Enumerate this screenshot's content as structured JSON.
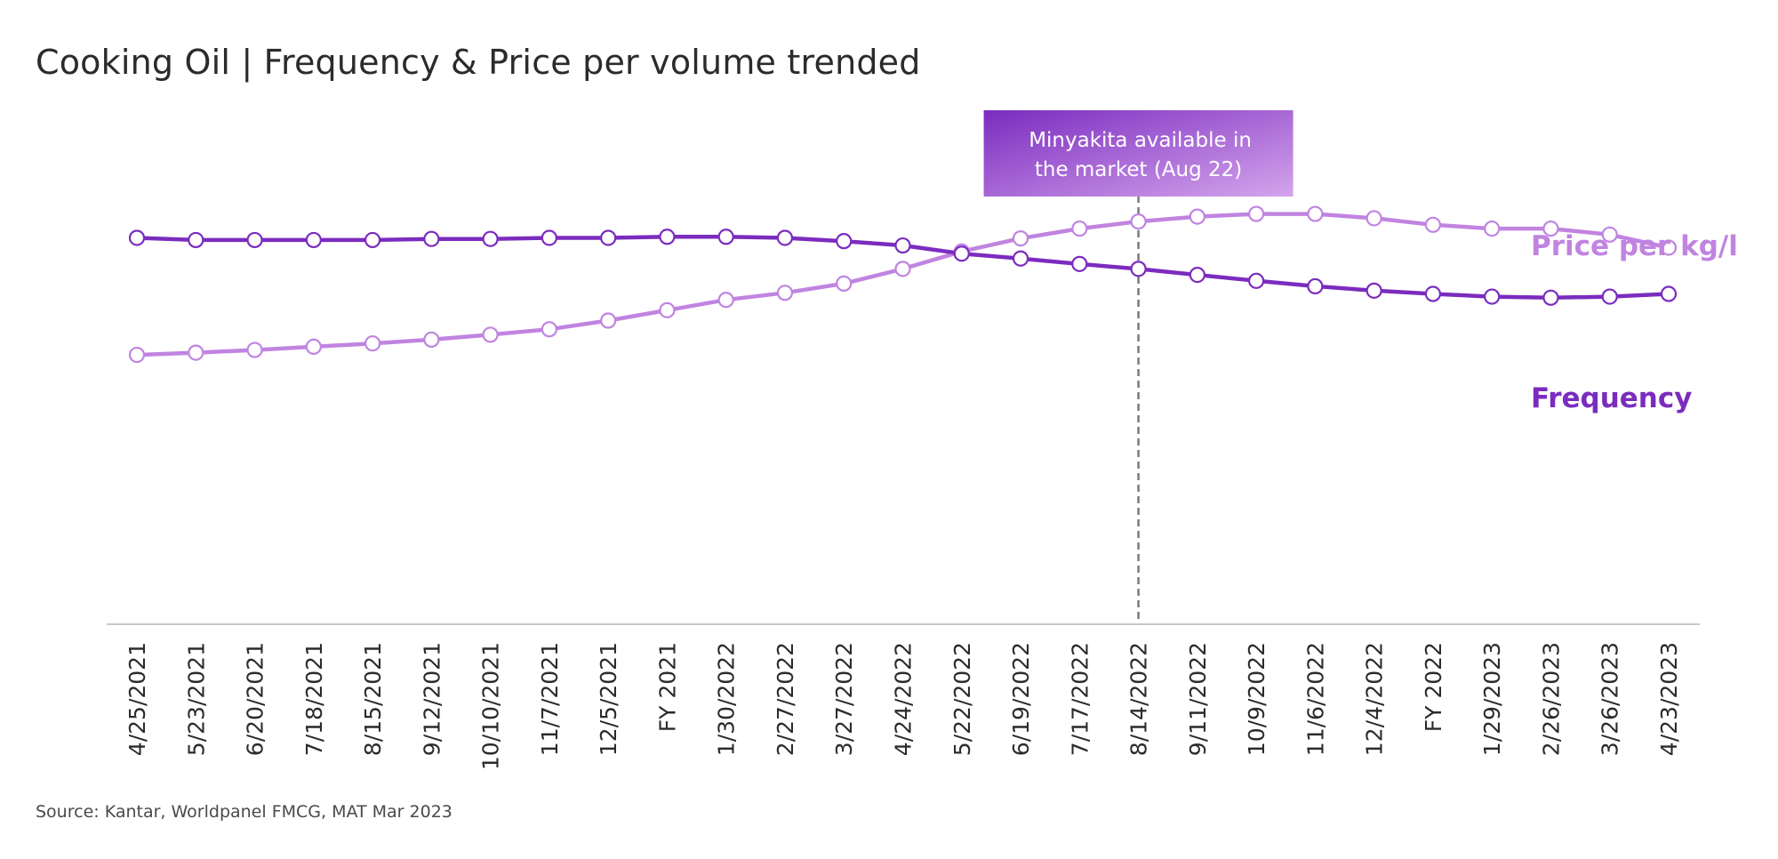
{
  "title": "Cooking Oil | Frequency & Price per volume trended",
  "source": "Source: Kantar, Worldpanel FMCG, MAT Mar 2023",
  "colors": {
    "frequency": "#7b2cbf",
    "price": "#c084e0",
    "axis": "#c8c8c8",
    "marker_line": "#7a7a7a",
    "callout_start": "#7b2cbf",
    "callout_end": "#d4a4ec"
  },
  "chart_data": {
    "type": "line",
    "categories": [
      "4/25/2021",
      "5/23/2021",
      "6/20/2021",
      "7/18/2021",
      "8/15/2021",
      "9/12/2021",
      "10/10/2021",
      "11/7/2021",
      "12/5/2021",
      "FY 2021",
      "1/30/2022",
      "2/27/2022",
      "3/27/2022",
      "4/24/2022",
      "5/22/2022",
      "6/19/2022",
      "7/17/2022",
      "8/14/2022",
      "9/11/2022",
      "10/9/2022",
      "11/6/2022",
      "12/4/2022",
      "FY 2022",
      "1/29/2023",
      "2/26/2023",
      "3/26/2023",
      "4/23/2023"
    ],
    "series": [
      {
        "name": "Frequency",
        "values": [
          71.0,
          70.6,
          70.6,
          70.6,
          70.6,
          70.8,
          70.8,
          71.0,
          71.0,
          71.2,
          71.2,
          71.0,
          70.4,
          69.6,
          68.1,
          67.2,
          66.2,
          65.3,
          64.2,
          63.1,
          62.1,
          61.3,
          60.7,
          60.2,
          60.0,
          60.2,
          60.7
        ]
      },
      {
        "name": "Price per kg/l",
        "values": [
          49.5,
          49.9,
          50.4,
          51.0,
          51.6,
          52.3,
          53.2,
          54.2,
          55.8,
          57.7,
          59.6,
          60.9,
          62.6,
          65.3,
          68.5,
          70.9,
          72.7,
          74.0,
          74.9,
          75.4,
          75.4,
          74.6,
          73.4,
          72.7,
          72.7,
          71.6,
          69.2
        ]
      }
    ],
    "ylim": [
      0,
      100
    ],
    "xlabel": "",
    "ylabel": "",
    "grid": false,
    "legend": "direct labels at right end of lines",
    "annotation": {
      "category": "8/14/2022",
      "text_line1": "Minyakita available in",
      "text_line2": "the market (Aug 22)"
    }
  }
}
